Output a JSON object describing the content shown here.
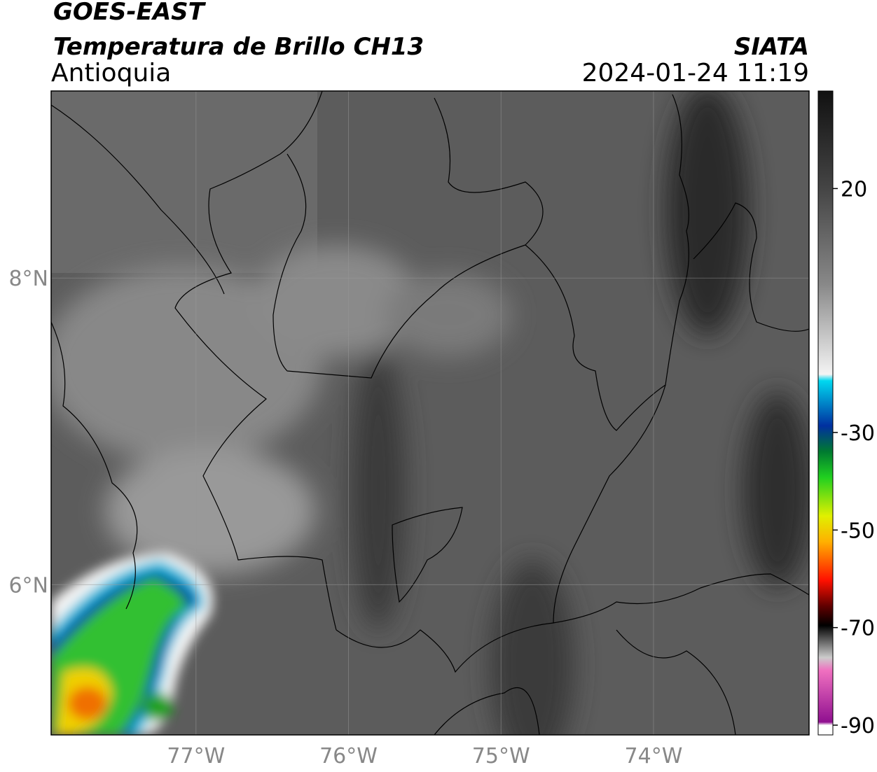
{
  "header": {
    "title": "GOES-EAST",
    "subtitle": "Temperatura de Brillo CH13",
    "region": "Antioquia",
    "source": "SIATA",
    "datetime": "2024-01-24 11:19"
  },
  "map": {
    "xlim": [
      -77.95,
      -72.98
    ],
    "ylim": [
      5.02,
      9.22
    ],
    "xticks": [
      {
        "value": -77,
        "label": "77°W"
      },
      {
        "value": -76,
        "label": "76°W"
      },
      {
        "value": -75,
        "label": "75°W"
      },
      {
        "value": -74,
        "label": "74°W"
      }
    ],
    "yticks": [
      {
        "value": 8,
        "label": "8°N"
      },
      {
        "value": 6,
        "label": "6°N"
      }
    ],
    "grid": true
  },
  "colorbar": {
    "lim": [
      -92,
      40
    ],
    "ticks": [
      20,
      -30,
      -50,
      -70,
      -90
    ]
  }
}
